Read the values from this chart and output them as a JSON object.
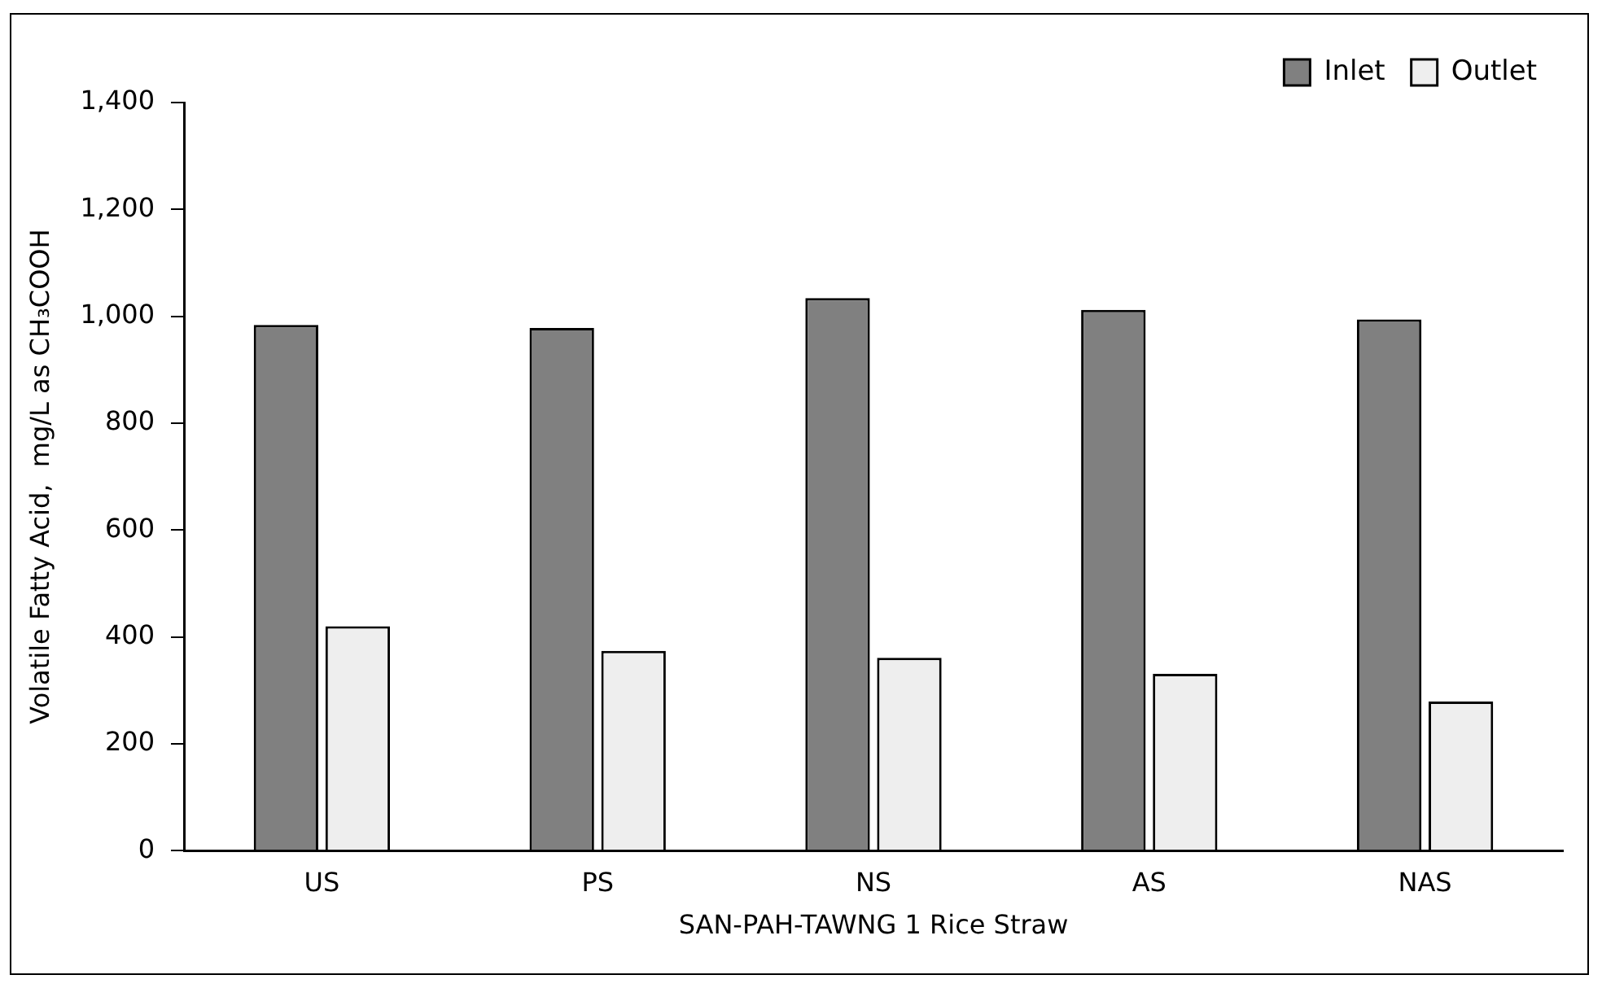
{
  "chart_data": {
    "type": "bar",
    "xlabel": "SAN-PAH-TAWNG 1 Rice Straw",
    "ylabel": "Volatile Fatty Acid,  mg/L as CH₃COOH",
    "categories": [
      "US",
      "PS",
      "NS",
      "AS",
      "NAS"
    ],
    "series": [
      {
        "name": "Inlet",
        "color": "#808080",
        "values": [
          984,
          978,
          1034,
          1012,
          994
        ]
      },
      {
        "name": "Outlet",
        "color": "#eeeeee",
        "values": [
          420,
          374,
          361,
          331,
          279
        ]
      }
    ],
    "ylim": [
      0,
      1400
    ],
    "yticks": [
      0,
      200,
      400,
      600,
      800,
      {
        "value": 1000,
        "label": "1,000"
      },
      {
        "value": 1200,
        "label": "1,200"
      },
      {
        "value": 1400,
        "label": "1,400"
      }
    ],
    "grid": false,
    "legend": "top right"
  }
}
